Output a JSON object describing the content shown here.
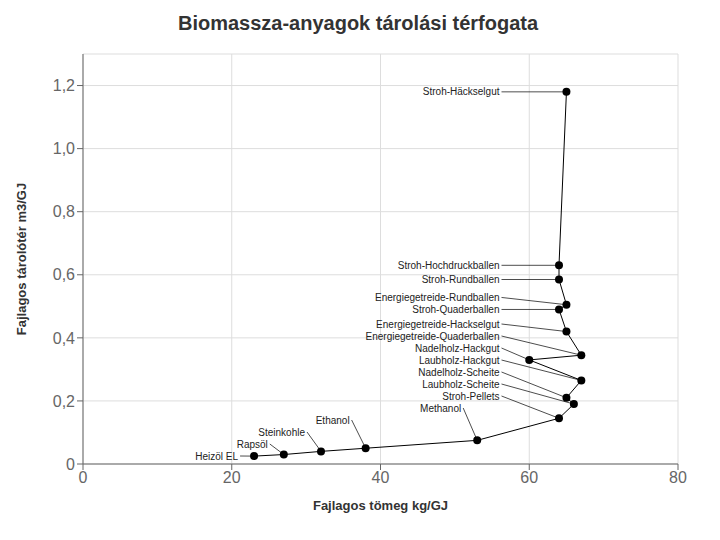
{
  "chart_data": {
    "type": "scatter",
    "title": "Biomassza-anyagok tárolási térfogata",
    "xlabel": "Fajlagos tömeg kg/GJ",
    "ylabel": "Fajlagos tárolótér m3/GJ",
    "x": [
      23,
      27,
      32,
      38,
      53,
      64,
      66,
      65,
      67,
      60,
      67,
      65,
      64,
      65,
      64,
      64,
      65
    ],
    "values": [
      0.025,
      0.03,
      0.04,
      0.05,
      0.075,
      0.145,
      0.19,
      0.21,
      0.265,
      0.33,
      0.345,
      0.42,
      0.49,
      0.505,
      0.585,
      0.63,
      1.18
    ],
    "annotations": [
      "Heizöl EL",
      "Rapsöl",
      "Steinkohle",
      "Ethanol",
      "Methanol",
      "Stroh-Pellets",
      "Laubholz-Scheite",
      "Nadelholz-Scheite",
      "Laubholz-Hackgut",
      "Nadelholz-Hackgut",
      "Energiegetreide-Quaderballen",
      "Energiegetreide-Hackselgut",
      "Stroh-Quaderballen",
      "Energiegetreide-Rundballen",
      "Stroh-Rundballen",
      "Stroh-Hochdruckballen",
      "Stroh-Häckselgut"
    ],
    "color": "#000000",
    "marker": "circle",
    "line_style": "solid",
    "xlim": [
      0,
      80
    ],
    "ylim": [
      0,
      1.3
    ],
    "xticks": [
      0,
      20,
      40,
      60,
      80
    ],
    "yticks": [
      0,
      {
        "value": 0.2,
        "label": "0,2"
      },
      {
        "value": 0.4,
        "label": "0,4"
      },
      {
        "value": 0.6,
        "label": "0,6"
      },
      {
        "value": 0.8,
        "label": "0,8"
      },
      {
        "value": 1.0,
        "label": "1,0"
      },
      {
        "value": 1.2,
        "label": "1,2"
      }
    ],
    "grid": true
  }
}
